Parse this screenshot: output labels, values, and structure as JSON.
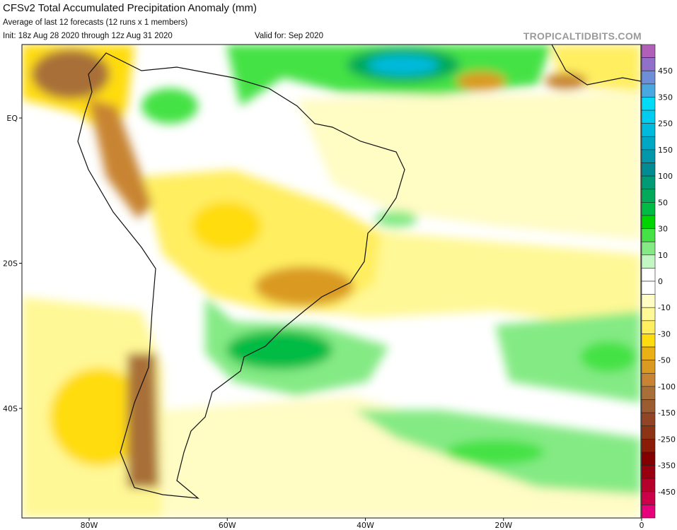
{
  "header": {
    "title": "CFSv2 Total Accumulated Precipitation Anomaly (mm)",
    "subtitle": "Average of last 12 forecasts (12 runs x 1 members)",
    "init": "Init: 18z Aug 28 2020 through 12z Aug 31 2020",
    "valid": "Valid for: Sep 2020",
    "brand": "TROPICALTIDBITS.COM"
  },
  "map": {
    "lon_labels": [
      "80W",
      "60W",
      "40W",
      "20W",
      "0"
    ],
    "lat_labels": [
      "EQ",
      "20S",
      "40S"
    ],
    "lon_range": [
      -90,
      0
    ],
    "lat_range": [
      10,
      -55
    ]
  },
  "colorbar": {
    "unit": "mm",
    "labels": [
      "450",
      "350",
      "250",
      "150",
      "100",
      "50",
      "30",
      "10",
      "0",
      "-10",
      "-30",
      "-50",
      "-100",
      "-150",
      "-250",
      "-350",
      "-450"
    ],
    "colors": [
      "#b060b8",
      "#9070c8",
      "#6e8ed8",
      "#4aa8e0",
      "#00dcf8",
      "#00cbf0",
      "#00bade",
      "#00a8c4",
      "#0098aa",
      "#008c92",
      "#009a74",
      "#00aa58",
      "#00bc44",
      "#00d400",
      "#44e244",
      "#84ea84",
      "#c2f6c2",
      "#ffffff",
      "#ffffff",
      "#fffcc4",
      "#fff896",
      "#ffee60",
      "#ffdc10",
      "#eab014",
      "#da9a22",
      "#c88432",
      "#a87038",
      "#9a5c30",
      "#924424",
      "#8c3414",
      "#8a1c08",
      "#820000",
      "#980010",
      "#b4002a",
      "#cc0048",
      "#e6007a"
    ]
  }
}
